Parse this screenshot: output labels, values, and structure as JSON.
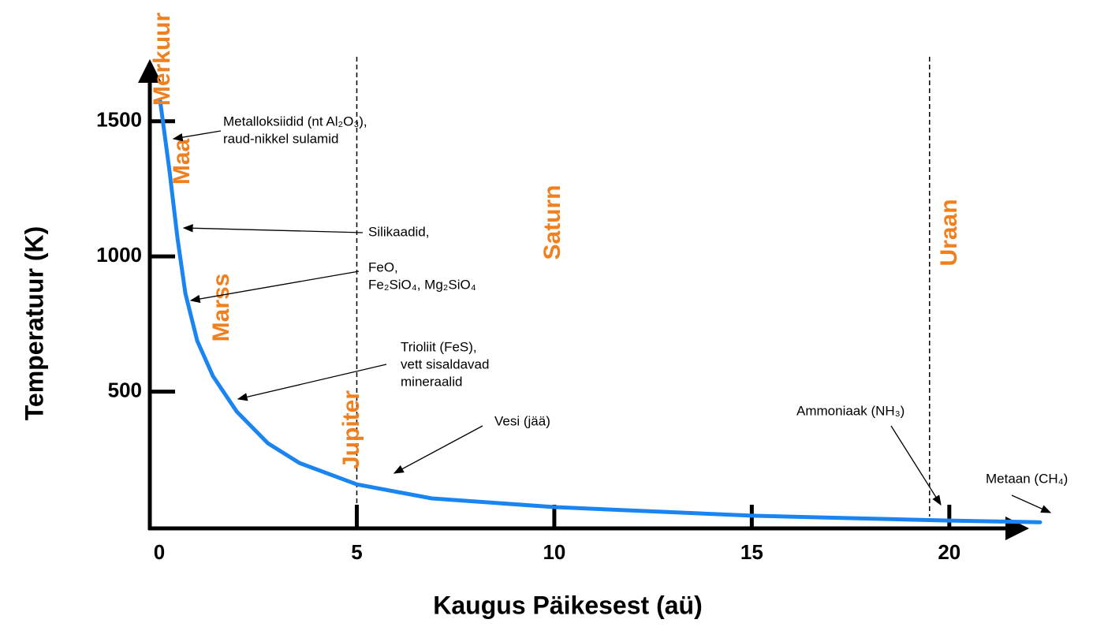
{
  "chart_data": {
    "type": "line",
    "x_label": "Kaugus Päikesest (aü)",
    "y_label": "Temperatuur (K)",
    "x": [
      0.02,
      0.26,
      0.46,
      0.66,
      0.96,
      1.36,
      1.96,
      2.75,
      3.55,
      5,
      6.9,
      10,
      15,
      20,
      22.3
    ],
    "values": [
      1577,
      1315,
      1067,
      863,
      688,
      557,
      426,
      309,
      236,
      157,
      105,
      73,
      41,
      23,
      17
    ],
    "color": "#1a85f0",
    "xlim": [
      -0.25,
      22
    ],
    "ylim": [
      0,
      1750
    ],
    "xticks": [
      0,
      5,
      10,
      15,
      20
    ],
    "yticks": [
      500,
      1000,
      1500
    ],
    "vlines": [
      5,
      19.5
    ],
    "planets": [
      "Merkuur",
      "Maa",
      "Marss",
      "Jupiter",
      "Saturn",
      "Uraan"
    ],
    "planet_color": "#f07f1e",
    "annotations": [
      [
        "Metalloksiidid (nt Al₂O₃),",
        "raud-nikkel sulamid"
      ],
      [
        "Silikaadid,"
      ],
      [
        "FeO,",
        "Fe₂SiO₄, Mg₂SiO₄"
      ],
      [
        "Trioliit (FeS),",
        "vett sisaldavad",
        "mineraalid"
      ],
      [
        "Vesi (jää)"
      ],
      [
        "Ammoniaak (NH₃)"
      ],
      [
        "Metaan (CH₄)"
      ]
    ]
  }
}
